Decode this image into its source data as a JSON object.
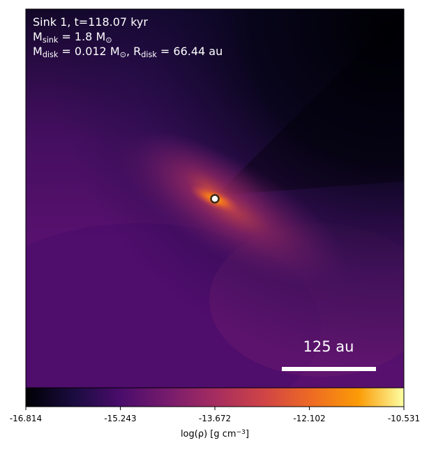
{
  "chart_data": {
    "type": "image",
    "annotations": [
      [
        {
          "text": "Sink 1, t=118.07 kyr"
        }
      ],
      [
        {
          "text": "M"
        },
        {
          "sub": "sink"
        },
        {
          "text": " = 1.8 M"
        },
        {
          "sub": "⊙"
        }
      ],
      [
        {
          "text": "M"
        },
        {
          "sub": "disk"
        },
        {
          "text": " = 0.012 M"
        },
        {
          "sub": "⊙"
        },
        {
          "text": ", R"
        },
        {
          "sub": "disk"
        },
        {
          "text": " = 66.44 au"
        }
      ]
    ],
    "scale_bar": "125 au",
    "colorbar": {
      "label": [
        {
          "text": "log(ρ) [g cm"
        },
        {
          "sup": "−3"
        },
        {
          "text": "]"
        }
      ],
      "lim": [
        -16.814,
        -10.531
      ],
      "ticks": [
        -16.814,
        -15.243,
        -13.672,
        -12.102,
        -10.531
      ]
    }
  }
}
